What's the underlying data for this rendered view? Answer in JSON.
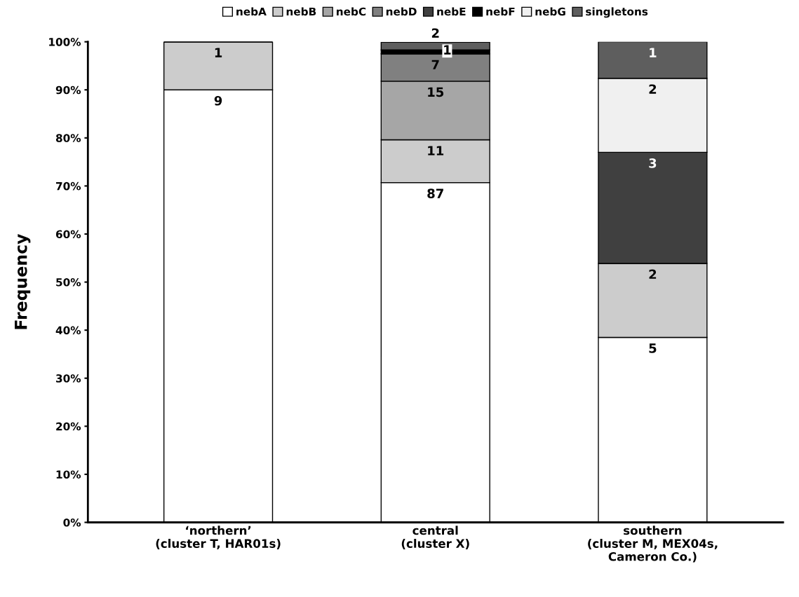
{
  "chart_data": {
    "type": "bar",
    "stacked": true,
    "ylabel": "Frequency",
    "categories": [
      "‘northern’\n(cluster T, HAR01s)",
      "central\n(cluster X)",
      "southern\n(cluster M, MEX04s,\nCameron Co.)"
    ],
    "series": [
      {
        "name": "nebA",
        "color": "#ffffff",
        "values": [
          90,
          70.7,
          38.5
        ]
      },
      {
        "name": "nebB",
        "color": "#cccccc",
        "values": [
          10,
          8.9,
          15.4
        ]
      },
      {
        "name": "nebC",
        "color": "#a6a6a6",
        "values": [
          0,
          12.2,
          0
        ]
      },
      {
        "name": "nebD",
        "color": "#808080",
        "values": [
          0,
          5.7,
          0
        ]
      },
      {
        "name": "nebE",
        "color": "#404040",
        "values": [
          0,
          0,
          23.1
        ]
      },
      {
        "name": "nebF",
        "color": "#000000",
        "values": [
          0,
          0.8,
          0
        ]
      },
      {
        "name": "nebG",
        "color": "#f0f0f0",
        "values": [
          0,
          0,
          15.4
        ]
      },
      {
        "name": "singletons",
        "color": "#5e5e5e",
        "values": [
          0,
          1.6,
          7.6
        ]
      }
    ],
    "annotations": [
      {
        "text": "9",
        "x": "‘northern’\n(cluster T, HAR01s)",
        "y": 90
      },
      {
        "text": "1",
        "x": "‘northern’\n(cluster T, HAR01s)",
        "y": 100
      },
      {
        "text": "87",
        "x": "central\n(cluster X)",
        "y": 70.7
      },
      {
        "text": "11",
        "x": "central\n(cluster X)",
        "y": 79.6
      },
      {
        "text": "15",
        "x": "central\n(cluster X)",
        "y": 91.8
      },
      {
        "text": "7",
        "x": "central\n(cluster X)",
        "y": 97.5
      },
      {
        "text": "1",
        "x": "central\n(cluster X)",
        "y": 98.3
      },
      {
        "text": "2",
        "x": "central\n(cluster X)",
        "y": 99.9
      },
      {
        "text": "5",
        "x": "southern\n(cluster M, MEX04s,\nCameron Co.)",
        "y": 38.5
      },
      {
        "text": "2",
        "x": "southern\n(cluster M, MEX04s,\nCameron Co.)",
        "y": 53.9
      },
      {
        "text": "3",
        "x": "southern\n(cluster M, MEX04s,\nCameron Co.)",
        "y": 77.0
      },
      {
        "text": "2",
        "x": "southern\n(cluster M, MEX04s,\nCameron Co.)",
        "y": 92.4
      },
      {
        "text": "1",
        "x": "southern\n(cluster M, MEX04s,\nCameron Co.)",
        "y": 100.0
      }
    ],
    "ylim": [
      0,
      100
    ],
    "yticks": [
      {
        "value": 0,
        "label": "0%"
      },
      {
        "value": 10,
        "label": "10%"
      },
      {
        "value": 20,
        "label": "20%"
      },
      {
        "value": 30,
        "label": "30%"
      },
      {
        "value": 40,
        "label": "40%"
      },
      {
        "value": 50,
        "label": "50%"
      },
      {
        "value": 60,
        "label": "60%"
      },
      {
        "value": 70,
        "label": "70%"
      },
      {
        "value": 80,
        "label": "80%"
      },
      {
        "value": 90,
        "label": "90%"
      },
      {
        "value": 100,
        "label": "100%"
      }
    ],
    "grid": false,
    "legend": "top"
  }
}
